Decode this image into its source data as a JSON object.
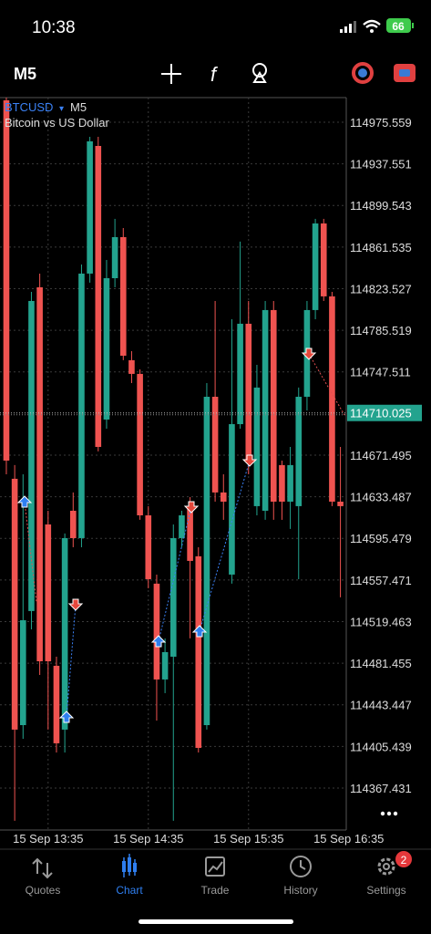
{
  "status_bar": {
    "time": "10:38",
    "battery": "66"
  },
  "toolbar": {
    "timeframe": "M5"
  },
  "chart_header": {
    "symbol": "BTCUSD",
    "timeframe": "M5",
    "description": "Bitcoin vs US Dollar"
  },
  "chart_data": {
    "type": "candlestick",
    "open": [
      114995.6,
      114649.9,
      114424.9,
      114529.1,
      114824.8,
      114608.2,
      114479.1,
      114420.8,
      114620.7,
      114595.7,
      114837.3,
      114953.9,
      114704.0,
      114833.1,
      114870.6,
      114758.2,
      114745.7,
      114616.5,
      114554.1,
      114466.6,
      114487.4,
      114595.7,
      114624.9,
      114579.1,
      114424.9,
      114724.8,
      114637.4,
      114562.4,
      114699.8,
      114791.5,
      114624.9,
      114620.7,
      114804.0,
      114662.4,
      114629.0,
      114624.9,
      114724.8,
      114804.0,
      114883.1,
      114816.5,
      114629.0
    ],
    "high": [
      114998.1,
      114662.4,
      114654.0,
      114820.6,
      114837.3,
      114620.7,
      114487.4,
      114599.9,
      114637.4,
      114845.6,
      114962.2,
      114962.2,
      114849.8,
      114887.3,
      114878.9,
      114766.5,
      114749.8,
      114624.9,
      114562.4,
      114504.1,
      114608.2,
      114620.7,
      114633.2,
      114587.4,
      114737.3,
      114812.3,
      114654.0,
      114795.6,
      114866.5,
      114812.3,
      114754.0,
      114812.3,
      114812.3,
      114666.5,
      114679.0,
      114733.2,
      114812.3,
      114887.3,
      114887.3,
      114820.6,
      114679.0
    ],
    "low": [
      114654.0,
      114337.5,
      114412.4,
      114512.4,
      114470.7,
      114420.8,
      114399.9,
      114399.9,
      114587.4,
      114587.4,
      114829.0,
      114674.9,
      114695.7,
      114824.8,
      114758.2,
      114737.3,
      114612.4,
      114549.9,
      114429.1,
      114454.1,
      114337.5,
      114587.4,
      114504.1,
      114399.9,
      114420.8,
      114629.0,
      114612.4,
      114554.1,
      114695.7,
      114654.0,
      114616.5,
      114612.4,
      114612.4,
      114612.4,
      114604.1,
      114558.2,
      114712.3,
      114795.6,
      114812.3,
      114624.9,
      114541.6
    ],
    "close": [
      114666.5,
      114420.8,
      114520.7,
      114812.3,
      114483.2,
      114483.2,
      114408.3,
      114595.7,
      114595.7,
      114837.3,
      114958.1,
      114679.0,
      114833.1,
      114870.6,
      114762.3,
      114745.7,
      114616.5,
      114558.2,
      114466.6,
      114491.6,
      114595.7,
      114616.5,
      114574.9,
      114404.1,
      114724.8,
      114637.4,
      114629.0,
      114699.8,
      114791.5,
      114666.5,
      114733.2,
      114804.0,
      114629.0,
      114629.0,
      114662.4,
      114724.8,
      114804.0,
      114883.1,
      114816.5,
      114629.0,
      114624.9
    ],
    "up_color": "#23a38e",
    "down_color": "#ef5350",
    "xlim": [
      -0.76,
      40.7
    ],
    "xticks": [
      {
        "value": 5,
        "label": "15 Sep 13:35"
      },
      {
        "value": 17,
        "label": "15 Sep 14:35"
      },
      {
        "value": 29,
        "label": "15 Sep 15:35"
      },
      {
        "value": 41,
        "label": "15 Sep 16:35"
      }
    ],
    "ylim": [
      114329.1,
      114998.05
    ],
    "yticks": [
      114975.559,
      114937.551,
      114899.543,
      114861.535,
      114823.527,
      114785.519,
      114747.511,
      114671.495,
      114633.487,
      114595.479,
      114557.471,
      114519.463,
      114481.455,
      114443.447,
      114405.439,
      114367.431
    ],
    "grid": true,
    "current_price": 114710.025
  },
  "nav": {
    "items": [
      {
        "label": "Quotes"
      },
      {
        "label": "Chart"
      },
      {
        "label": "Trade"
      },
      {
        "label": "History"
      },
      {
        "label": "Settings"
      }
    ],
    "settings_badge": "2"
  }
}
